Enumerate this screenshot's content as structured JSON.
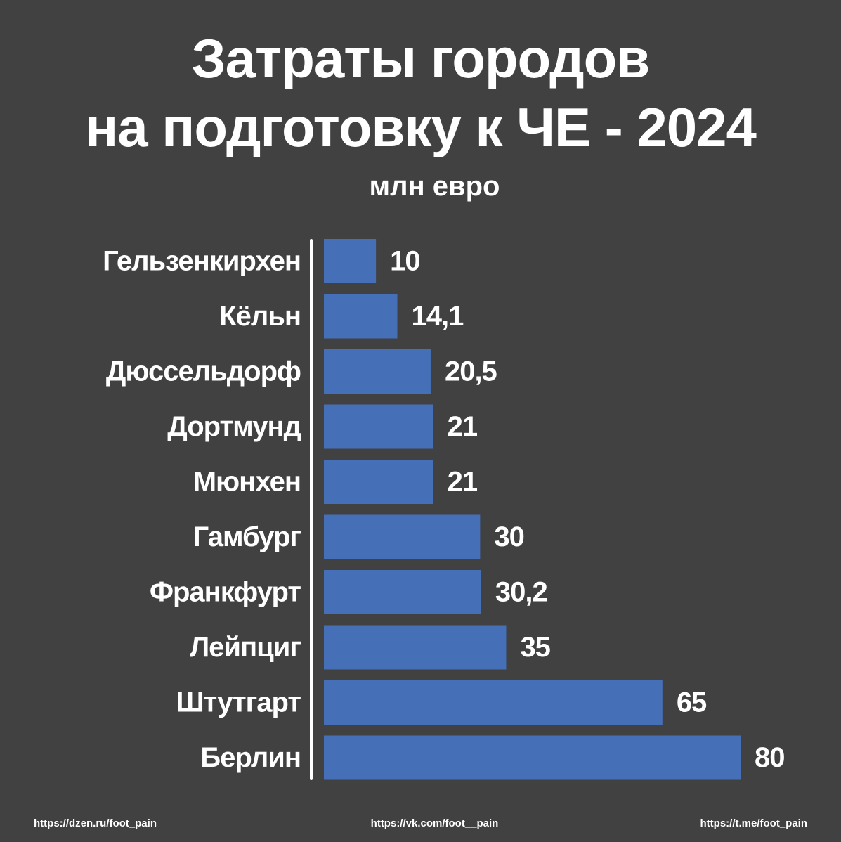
{
  "header": {
    "title_line1": "Затраты городов",
    "title_line2": "на подготовку к ЧЕ - 2024",
    "unit_label": "млн евро"
  },
  "chart_data": {
    "type": "bar",
    "orientation": "horizontal",
    "title": "Затраты городов на подготовку к ЧЕ - 2024",
    "subtitle": "млн евро",
    "categories": [
      "Гельзенкирхен",
      "Кёльн",
      "Дюссельдорф",
      "Дортмунд",
      "Мюнхен",
      "Гамбург",
      "Франкфурт",
      "Лейпциг",
      "Штутгарт",
      "Берлин"
    ],
    "values": [
      10,
      14.1,
      20.5,
      21,
      21,
      30,
      30.2,
      35,
      65,
      80
    ],
    "value_labels": [
      "10",
      "14,1",
      "20,5",
      "21",
      "21",
      "30",
      "30,2",
      "35",
      "65",
      "80"
    ],
    "xlim": [
      0,
      80
    ],
    "grid": false,
    "bar_color": "#4570b8"
  },
  "colors": {
    "background": "#414141",
    "text": "#ffffff",
    "bar": "#4570b8",
    "axis": "#ffffff"
  },
  "footer": {
    "left": "https://dzen.ru/foot_pain",
    "center": "https://vk.com/foot__pain",
    "right": "https://t.me/foot_pain"
  }
}
